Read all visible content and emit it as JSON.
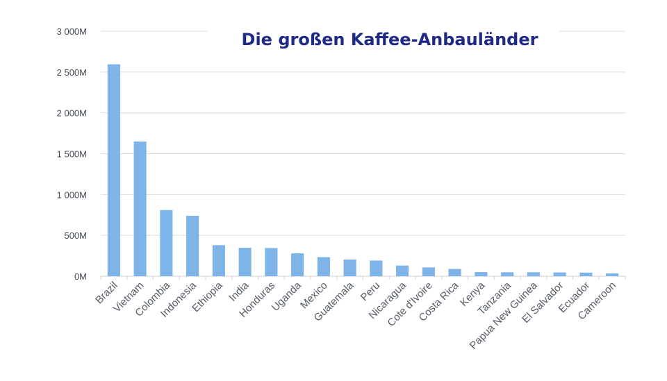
{
  "chart_data": {
    "type": "bar",
    "title": "Die großen Kaffee-Anbauländer",
    "xlabel": "",
    "ylabel": "",
    "ylim": [
      0,
      3000
    ],
    "y_ticks": [
      "0M",
      "500M",
      "1 000M",
      "1 500M",
      "2 000M",
      "2 500M",
      "3 000M"
    ],
    "y_tick_values": [
      0,
      500,
      1000,
      1500,
      2000,
      2500,
      3000
    ],
    "grid": true,
    "categories": [
      "Brazil",
      "Vietnam",
      "Colombia",
      "Indonesia",
      "Ethiopia",
      "India",
      "Honduras",
      "Uganda",
      "Mexico",
      "Guatemala",
      "Peru",
      "Nicaragua",
      "Cote d'Ivoire",
      "Costa Rica",
      "Kenya",
      "Tanzania",
      "Papua New Guinea",
      "El Salvador",
      "Ecuador",
      "Cameroon"
    ],
    "values": [
      2595,
      1650,
      810,
      740,
      380,
      348,
      345,
      280,
      234,
      204,
      192,
      130,
      108,
      89,
      50,
      48,
      48,
      46,
      44,
      34
    ],
    "bar_color": "#7eb4e8"
  }
}
